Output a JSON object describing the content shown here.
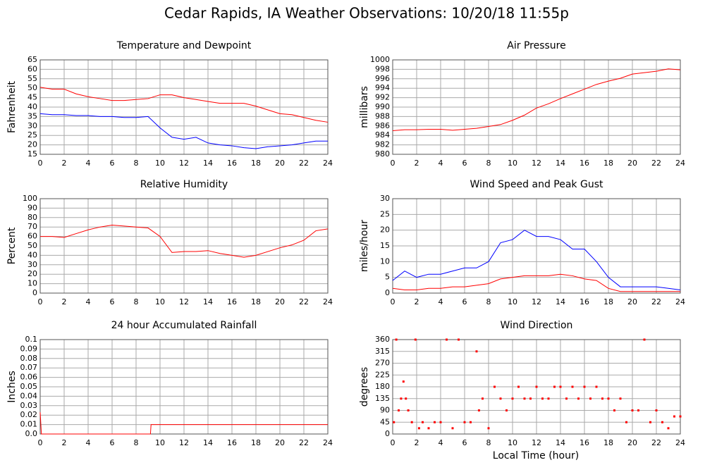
{
  "title": "Cedar Rapids, IA Weather Observations: 10/20/18 11:55p",
  "xlabel": "Local Time (hour)",
  "chart_data": [
    {
      "type": "line",
      "title": "Temperature and Dewpoint",
      "ylabel": "Fahrenheit",
      "x": [
        0,
        1,
        2,
        3,
        4,
        5,
        6,
        7,
        8,
        9,
        10,
        11,
        12,
        13,
        14,
        15,
        16,
        17,
        18,
        19,
        20,
        21,
        22,
        23,
        24
      ],
      "series": [
        {
          "name": "Temperature",
          "color": "#ff0000",
          "values": [
            50.5,
            49.5,
            49.5,
            47,
            45.5,
            44.5,
            43.5,
            43.5,
            44,
            44.5,
            46.5,
            46.5,
            45,
            44,
            43,
            42,
            42,
            42,
            40.5,
            38.5,
            36.5,
            36,
            34.5,
            33,
            32
          ]
        },
        {
          "name": "Dewpoint",
          "color": "#0000ff",
          "values": [
            36.5,
            36,
            36,
            35.5,
            35.5,
            35,
            35,
            34.5,
            34.5,
            35,
            29,
            24,
            23,
            24,
            21,
            20,
            19.5,
            18.5,
            18,
            19,
            19.5,
            20,
            21,
            22,
            22
          ]
        }
      ],
      "xlim": [
        0,
        24
      ],
      "xticks": [
        0,
        2,
        4,
        6,
        8,
        10,
        12,
        14,
        16,
        18,
        20,
        22,
        24
      ],
      "ylim": [
        15,
        65
      ],
      "yticks": [
        15,
        20,
        25,
        30,
        35,
        40,
        45,
        50,
        55,
        60,
        65
      ],
      "grid": true
    },
    {
      "type": "line",
      "title": "Air Pressure",
      "ylabel": "millibars",
      "x": [
        0,
        1,
        2,
        3,
        4,
        5,
        6,
        7,
        8,
        9,
        10,
        11,
        12,
        13,
        14,
        15,
        16,
        17,
        18,
        19,
        20,
        21,
        22,
        23,
        24
      ],
      "series": [
        {
          "name": "Pressure",
          "color": "#ff0000",
          "values": [
            985,
            985.2,
            985.2,
            985.3,
            985.3,
            985.1,
            985.3,
            985.5,
            985.9,
            986.3,
            987.2,
            988.3,
            989.8,
            990.7,
            991.8,
            992.8,
            993.8,
            994.8,
            995.5,
            996.1,
            997,
            997.3,
            997.6,
            998.1,
            997.9
          ]
        }
      ],
      "xlim": [
        0,
        24
      ],
      "xticks": [
        0,
        2,
        4,
        6,
        8,
        10,
        12,
        14,
        16,
        18,
        20,
        22,
        24
      ],
      "ylim": [
        980,
        1000
      ],
      "yticks": [
        980,
        982,
        984,
        986,
        988,
        990,
        992,
        994,
        996,
        998,
        1000
      ],
      "grid": true
    },
    {
      "type": "line",
      "title": "Relative Humidity",
      "ylabel": "Percent",
      "x": [
        0,
        1,
        2,
        3,
        4,
        5,
        6,
        7,
        8,
        9,
        10,
        11,
        12,
        13,
        14,
        15,
        16,
        17,
        18,
        19,
        20,
        21,
        22,
        23,
        24
      ],
      "series": [
        {
          "name": "Relative Humidity",
          "color": "#ff0000",
          "values": [
            60,
            60,
            59,
            63,
            67,
            70,
            72,
            71,
            70,
            69,
            60,
            43,
            44,
            44,
            45,
            42,
            40,
            38,
            40,
            44,
            48,
            51,
            56,
            66,
            68
          ]
        }
      ],
      "xlim": [
        0,
        24
      ],
      "xticks": [
        0,
        2,
        4,
        6,
        8,
        10,
        12,
        14,
        16,
        18,
        20,
        22,
        24
      ],
      "ylim": [
        0,
        100
      ],
      "yticks": [
        0,
        10,
        20,
        30,
        40,
        50,
        60,
        70,
        80,
        90,
        100
      ],
      "grid": true
    },
    {
      "type": "line",
      "title": "Wind Speed and Peak Gust",
      "ylabel": "miles/hour",
      "x": [
        0,
        1,
        2,
        3,
        4,
        5,
        6,
        7,
        8,
        9,
        10,
        11,
        12,
        13,
        14,
        15,
        16,
        17,
        18,
        19,
        20,
        21,
        22,
        23,
        24
      ],
      "series": [
        {
          "name": "Peak Gust",
          "color": "#0000ff",
          "values": [
            4,
            7,
            5,
            6,
            6,
            7,
            8,
            8,
            10,
            16,
            17,
            20,
            18,
            18,
            17,
            14,
            14,
            10,
            5,
            2,
            2,
            2,
            2,
            1.5,
            1
          ]
        },
        {
          "name": "Wind Speed",
          "color": "#ff0000",
          "values": [
            1.5,
            1,
            1,
            1.5,
            1.5,
            2,
            2,
            2.5,
            3,
            4.5,
            5,
            5.5,
            5.5,
            5.5,
            6,
            5.5,
            4.5,
            4,
            1.5,
            0.5,
            0.5,
            0.5,
            0.5,
            0.5,
            0.5
          ]
        }
      ],
      "xlim": [
        0,
        24
      ],
      "xticks": [
        0,
        2,
        4,
        6,
        8,
        10,
        12,
        14,
        16,
        18,
        20,
        22,
        24
      ],
      "ylim": [
        0,
        30
      ],
      "yticks": [
        0,
        5,
        10,
        15,
        20,
        25,
        30
      ],
      "grid": true
    },
    {
      "type": "line",
      "title": "24 hour Accumulated Rainfall",
      "ylabel": "Inches",
      "x": [
        0,
        0.1,
        9.2,
        9.25,
        24
      ],
      "series": [
        {
          "name": "Rainfall",
          "color": "#ff0000",
          "values": [
            0.023,
            0,
            0,
            0.01,
            0.01
          ]
        }
      ],
      "xlim": [
        0,
        24
      ],
      "xticks": [
        0,
        2,
        4,
        6,
        8,
        10,
        12,
        14,
        16,
        18,
        20,
        22,
        24
      ],
      "ylim": [
        0,
        0.1
      ],
      "yticks": [
        {
          "value": 0,
          "label": "0.0"
        },
        0.01,
        0.02,
        0.03,
        0.04,
        0.05,
        0.06,
        0.07,
        0.08,
        0.09,
        0.1
      ],
      "grid": true
    },
    {
      "type": "scatter",
      "title": "Wind Direction",
      "ylabel": "degrees",
      "x": [
        0.1,
        0.3,
        0.5,
        0.7,
        0.9,
        1.1,
        1.3,
        1.6,
        1.9,
        2.2,
        2.5,
        3,
        3.5,
        4,
        4.5,
        5,
        5.5,
        6,
        6.5,
        7,
        7.2,
        7.5,
        8,
        8.5,
        9,
        9.5,
        10,
        10.5,
        11,
        11.5,
        12,
        12.5,
        13,
        13.5,
        14,
        14.5,
        15,
        15.5,
        16,
        16.5,
        17,
        17.5,
        18,
        18.5,
        19,
        19.5,
        20,
        20.5,
        21,
        21.5,
        22,
        22.5,
        23,
        23.5,
        24
      ],
      "series": [
        {
          "name": "Wind Direction",
          "color": "#ff0000",
          "values": [
            45,
            360,
            90,
            135,
            200,
            135,
            90,
            45,
            360,
            22,
            45,
            22,
            45,
            45,
            360,
            22,
            360,
            45,
            45,
            315,
            90,
            135,
            22,
            180,
            135,
            90,
            135,
            180,
            135,
            135,
            180,
            135,
            135,
            180,
            180,
            135,
            180,
            135,
            180,
            135,
            180,
            135,
            135,
            90,
            135,
            45,
            90,
            90,
            360,
            45,
            90,
            45,
            22,
            67,
            67
          ]
        }
      ],
      "xlim": [
        0,
        24
      ],
      "xticks": [
        0,
        2,
        4,
        6,
        8,
        10,
        12,
        14,
        16,
        18,
        20,
        22,
        24
      ],
      "ylim": [
        0,
        360
      ],
      "yticks": [
        0,
        45,
        90,
        135,
        180,
        225,
        270,
        315,
        360
      ],
      "grid": true
    }
  ]
}
